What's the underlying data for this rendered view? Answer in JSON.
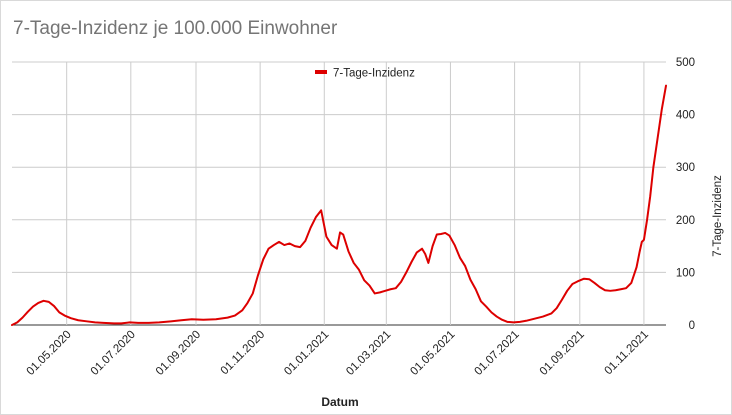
{
  "chart_data": {
    "type": "line",
    "title": "7-Tage-Inzidenz je 100.000 Einwohner",
    "xlabel": "Datum",
    "ylabel": "7-Tage-Inzidenz",
    "x_tick_labels": [
      "01.05.2020",
      "01.07.2020",
      "01.09.2020",
      "01.11.2020",
      "01.01.2021",
      "01.03.2021",
      "01.05.2021",
      "01.07.2021",
      "01.09.2021",
      "01.11.2021"
    ],
    "y_ticks": [
      0,
      100,
      200,
      300,
      400,
      500
    ],
    "ylim": [
      0,
      500
    ],
    "xlim": [
      "2020-03-10",
      "2021-11-22"
    ],
    "y_axis_side": "right",
    "grid": true,
    "legend_position": "top",
    "series": [
      {
        "name": "7-Tage-Inzidenz",
        "color": "#dd0000",
        "points": [
          [
            "2020-03-10",
            0
          ],
          [
            "2020-03-15",
            5
          ],
          [
            "2020-03-20",
            14
          ],
          [
            "2020-03-25",
            25
          ],
          [
            "2020-03-30",
            35
          ],
          [
            "2020-04-04",
            42
          ],
          [
            "2020-04-09",
            46
          ],
          [
            "2020-04-14",
            44
          ],
          [
            "2020-04-19",
            36
          ],
          [
            "2020-04-24",
            24
          ],
          [
            "2020-04-29",
            18
          ],
          [
            "2020-05-05",
            13
          ],
          [
            "2020-05-12",
            9
          ],
          [
            "2020-05-20",
            7
          ],
          [
            "2020-05-28",
            5
          ],
          [
            "2020-06-05",
            4
          ],
          [
            "2020-06-15",
            3
          ],
          [
            "2020-06-22",
            3
          ],
          [
            "2020-06-30",
            5
          ],
          [
            "2020-07-08",
            4
          ],
          [
            "2020-07-18",
            4
          ],
          [
            "2020-07-28",
            5
          ],
          [
            "2020-08-08",
            7
          ],
          [
            "2020-08-18",
            9
          ],
          [
            "2020-08-28",
            11
          ],
          [
            "2020-09-08",
            10
          ],
          [
            "2020-09-20",
            11
          ],
          [
            "2020-10-01",
            14
          ],
          [
            "2020-10-08",
            18
          ],
          [
            "2020-10-15",
            28
          ],
          [
            "2020-10-20",
            42
          ],
          [
            "2020-10-25",
            60
          ],
          [
            "2020-10-30",
            95
          ],
          [
            "2020-11-04",
            125
          ],
          [
            "2020-11-09",
            145
          ],
          [
            "2020-11-14",
            152
          ],
          [
            "2020-11-19",
            158
          ],
          [
            "2020-11-24",
            152
          ],
          [
            "2020-11-29",
            155
          ],
          [
            "2020-12-04",
            150
          ],
          [
            "2020-12-09",
            148
          ],
          [
            "2020-12-14",
            160
          ],
          [
            "2020-12-19",
            185
          ],
          [
            "2020-12-24",
            205
          ],
          [
            "2020-12-29",
            218
          ],
          [
            "2021-01-03",
            168
          ],
          [
            "2021-01-08",
            152
          ],
          [
            "2021-01-13",
            145
          ],
          [
            "2021-01-16",
            176
          ],
          [
            "2021-01-19",
            172
          ],
          [
            "2021-01-24",
            140
          ],
          [
            "2021-01-29",
            118
          ],
          [
            "2021-02-03",
            105
          ],
          [
            "2021-02-08",
            85
          ],
          [
            "2021-02-13",
            75
          ],
          [
            "2021-02-18",
            60
          ],
          [
            "2021-02-23",
            62
          ],
          [
            "2021-02-28",
            65
          ],
          [
            "2021-03-05",
            68
          ],
          [
            "2021-03-10",
            70
          ],
          [
            "2021-03-15",
            82
          ],
          [
            "2021-03-20",
            100
          ],
          [
            "2021-03-25",
            120
          ],
          [
            "2021-03-30",
            138
          ],
          [
            "2021-04-04",
            145
          ],
          [
            "2021-04-07",
            135
          ],
          [
            "2021-04-10",
            118
          ],
          [
            "2021-04-14",
            150
          ],
          [
            "2021-04-18",
            172
          ],
          [
            "2021-04-22",
            173
          ],
          [
            "2021-04-26",
            175
          ],
          [
            "2021-04-30",
            170
          ],
          [
            "2021-05-05",
            152
          ],
          [
            "2021-05-10",
            128
          ],
          [
            "2021-05-15",
            112
          ],
          [
            "2021-05-20",
            86
          ],
          [
            "2021-05-25",
            68
          ],
          [
            "2021-05-30",
            45
          ],
          [
            "2021-06-04",
            35
          ],
          [
            "2021-06-09",
            24
          ],
          [
            "2021-06-14",
            16
          ],
          [
            "2021-06-19",
            10
          ],
          [
            "2021-06-24",
            6
          ],
          [
            "2021-06-30",
            5
          ],
          [
            "2021-07-06",
            6
          ],
          [
            "2021-07-12",
            8
          ],
          [
            "2021-07-20",
            12
          ],
          [
            "2021-07-28",
            16
          ],
          [
            "2021-08-05",
            22
          ],
          [
            "2021-08-10",
            32
          ],
          [
            "2021-08-15",
            48
          ],
          [
            "2021-08-20",
            65
          ],
          [
            "2021-08-25",
            78
          ],
          [
            "2021-08-30",
            83
          ],
          [
            "2021-09-05",
            88
          ],
          [
            "2021-09-10",
            87
          ],
          [
            "2021-09-15",
            80
          ],
          [
            "2021-09-20",
            72
          ],
          [
            "2021-09-25",
            66
          ],
          [
            "2021-09-30",
            65
          ],
          [
            "2021-10-05",
            66
          ],
          [
            "2021-10-10",
            68
          ],
          [
            "2021-10-15",
            70
          ],
          [
            "2021-10-20",
            80
          ],
          [
            "2021-10-25",
            110
          ],
          [
            "2021-10-28",
            140
          ],
          [
            "2021-10-30",
            158
          ],
          [
            "2021-11-01",
            162
          ],
          [
            "2021-11-04",
            200
          ],
          [
            "2021-11-07",
            245
          ],
          [
            "2021-11-10",
            300
          ],
          [
            "2021-11-14",
            355
          ],
          [
            "2021-11-18",
            410
          ],
          [
            "2021-11-22",
            455
          ]
        ]
      }
    ]
  }
}
